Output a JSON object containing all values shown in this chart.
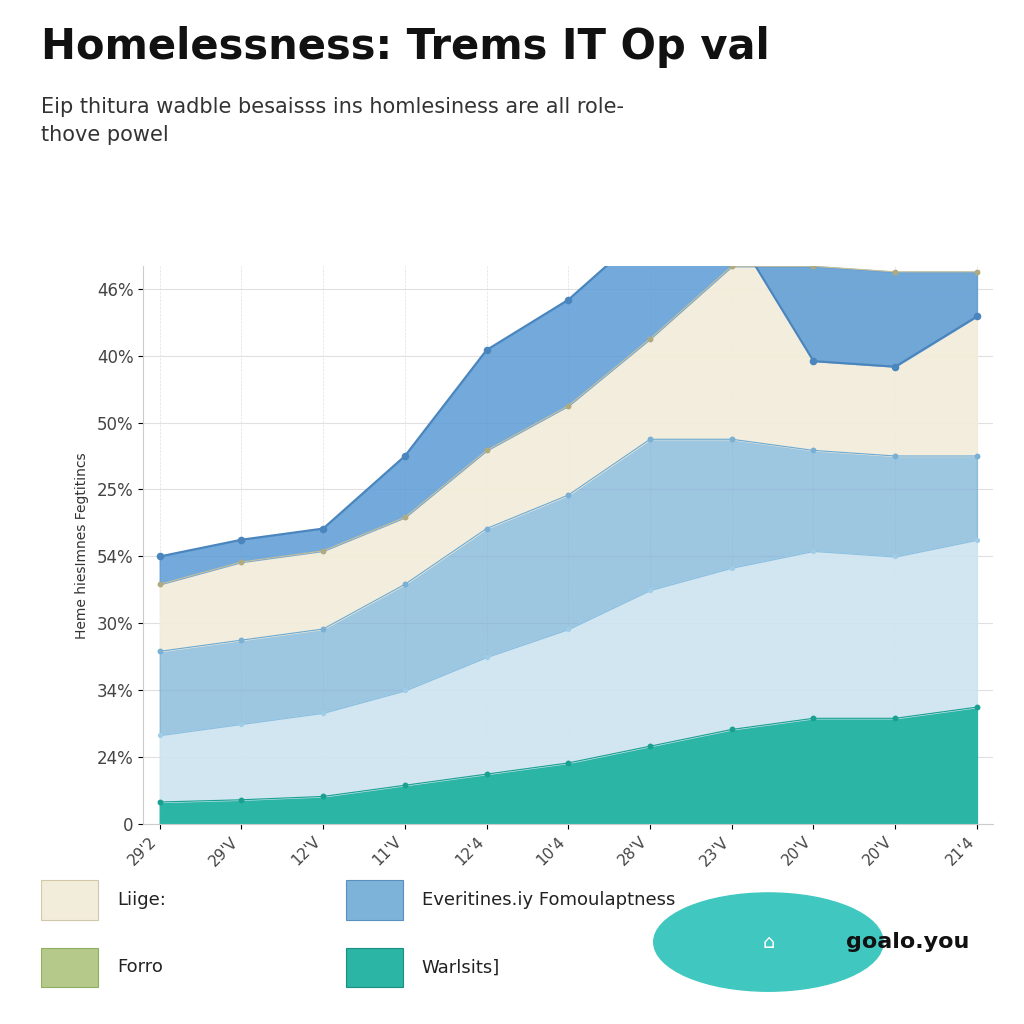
{
  "title": "Homelessness: Trems IT Op val",
  "subtitle": "Eip thitura wadble besaisss ins homlesiness are all role-\nthove powel",
  "ylabel": "Heme hiesImnes Fegtitincs",
  "background_color": "#ffffff",
  "x_labels": [
    "29'2",
    "29'V",
    "12'V",
    "11'V",
    "12'4",
    "10'4",
    "28'V",
    "23'V",
    "20'V",
    "20'V",
    "21'4"
  ],
  "ytick_positions": [
    0.0,
    0.06,
    0.12,
    0.18,
    0.24,
    0.3,
    0.36,
    0.42,
    0.48
  ],
  "ytick_labels": [
    "0",
    "24%",
    "34%",
    "30%",
    "54%",
    "25%",
    "50%",
    "40%",
    "46%"
  ],
  "series": {
    "y_top_blue": [
      0.24,
      0.255,
      0.265,
      0.33,
      0.425,
      0.47,
      0.535,
      0.535,
      0.415,
      0.41,
      0.455
    ],
    "y_cream": [
      0.215,
      0.235,
      0.245,
      0.275,
      0.335,
      0.375,
      0.435,
      0.5,
      0.5,
      0.495,
      0.495
    ],
    "y_medblue": [
      0.155,
      0.165,
      0.175,
      0.215,
      0.265,
      0.295,
      0.345,
      0.345,
      0.335,
      0.33,
      0.33
    ],
    "y_lightblue": [
      0.08,
      0.09,
      0.1,
      0.12,
      0.15,
      0.175,
      0.21,
      0.23,
      0.245,
      0.24,
      0.255
    ],
    "y_teal": [
      0.02,
      0.022,
      0.025,
      0.035,
      0.045,
      0.055,
      0.07,
      0.085,
      0.095,
      0.095,
      0.105
    ]
  },
  "colors": {
    "top_blue": "#5b9bd5",
    "cream": "#f2ecda",
    "medblue": "#7db3d8",
    "lightblue": "#cde4f0",
    "teal": "#2ab5a5",
    "line_top": "#4a85be",
    "line_cream": "#c8c09a",
    "line_med": "#6aaad4",
    "line_light": "#9ecde8",
    "line_teal": "#1aa090",
    "dot_top": "#4a85be",
    "dot_cream": "#b0aa80",
    "dot_med": "#7ab0d4",
    "dot_teal": "#1aa090",
    "grid": "#e0e0e0"
  },
  "legend": [
    {
      "label": "Liige:",
      "color": "#f2ecda",
      "edgecolor": "#d0c8a8"
    },
    {
      "label": "Forro",
      "color": "#b5c98a",
      "edgecolor": "#90b060"
    },
    {
      "label": "Everitines.iy Fomoulaptness",
      "color": "#7db3d8",
      "edgecolor": "#5a90c0"
    },
    {
      "label": "Warlsits]",
      "color": "#2ab5a5",
      "edgecolor": "#1a9080"
    }
  ],
  "logo_text": "goalo.you",
  "logo_color": "#40c8c0"
}
